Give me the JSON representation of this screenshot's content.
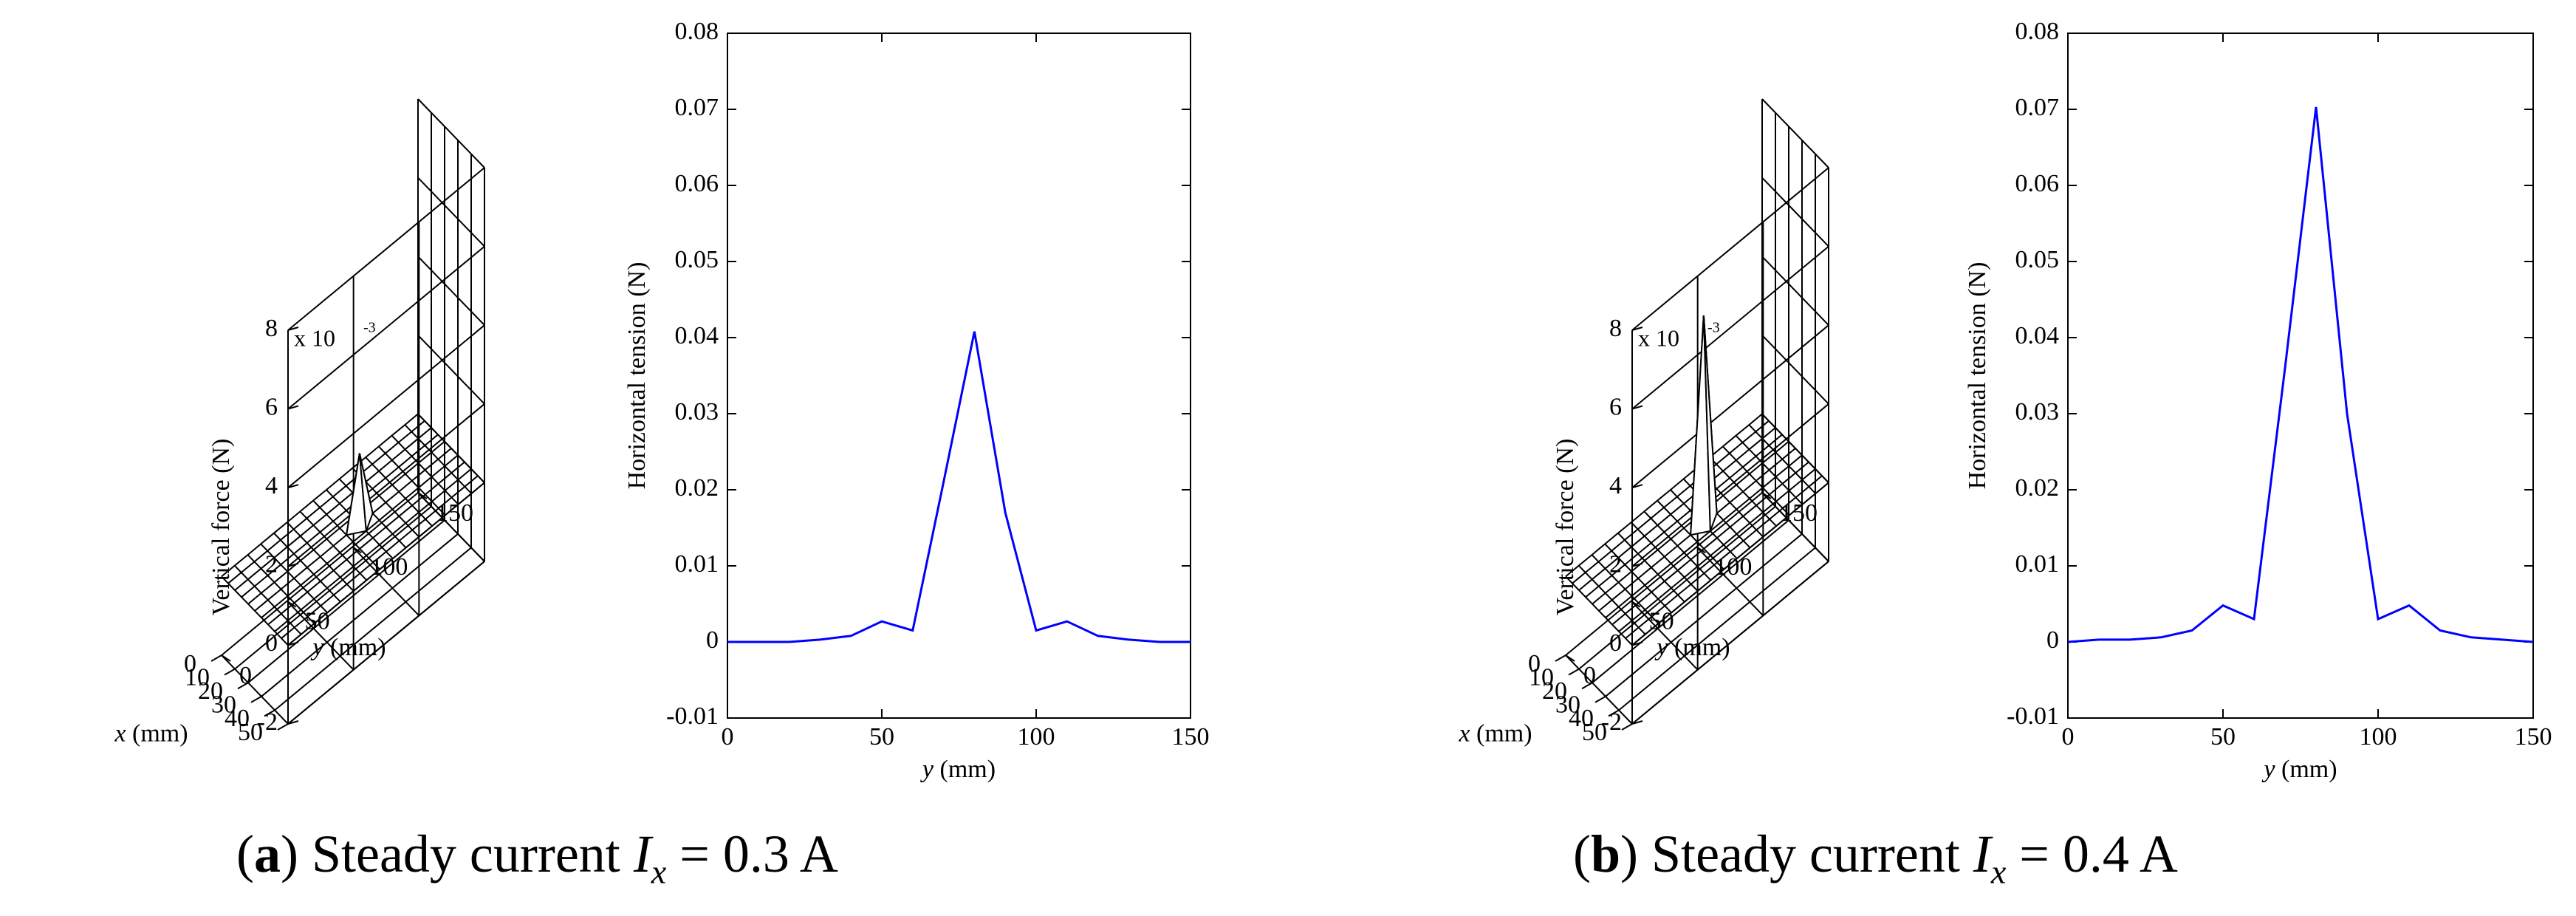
{
  "chart_data": [
    {
      "id": "a-3d",
      "type": "surface3d",
      "zlabel": "Vertical force (N)",
      "xlabel_var": "x",
      "xlabel_unit": " (mm)",
      "ylabel_var": "y",
      "ylabel_unit": " (mm)",
      "exponent_prefix": "x 10",
      "exponent_power": "-3",
      "x_ticks": [
        "0",
        "10",
        "20",
        "30",
        "40",
        "50"
      ],
      "y_ticks": [
        "0",
        "50",
        "100",
        "150"
      ],
      "z_ticks": [
        "-2",
        "0",
        "2",
        "4",
        "6",
        "8"
      ],
      "xlim": [
        0,
        50
      ],
      "ylim": [
        0,
        150
      ],
      "zlim": [
        -2,
        8
      ],
      "peak": {
        "x": 25,
        "y": 80,
        "z": 1.8
      }
    },
    {
      "id": "a-line",
      "type": "line",
      "ylabel": "Horizontal tension (N)",
      "xlabel_var": "y",
      "xlabel_unit": " (mm)",
      "xlim": [
        0,
        150
      ],
      "ylim": [
        -0.01,
        0.08
      ],
      "x_ticks": [
        "0",
        "50",
        "100",
        "150"
      ],
      "y_ticks": [
        "-0.01",
        "0",
        "0.01",
        "0.02",
        "0.03",
        "0.04",
        "0.05",
        "0.06",
        "0.07",
        "0.08"
      ],
      "series": [
        {
          "name": "Ix = 0.3 A",
          "color": "#0000ff",
          "x": [
            0,
            10,
            20,
            30,
            40,
            50,
            60,
            70,
            80,
            90,
            100,
            110,
            120,
            130,
            140,
            150
          ],
          "y": [
            0.0,
            0.0,
            0.0,
            0.0003,
            0.0008,
            0.0027,
            0.0015,
            0.021,
            0.0408,
            0.017,
            0.0015,
            0.0027,
            0.0008,
            0.0003,
            0.0,
            0.0
          ]
        }
      ]
    },
    {
      "id": "b-3d",
      "type": "surface3d",
      "zlabel": "Vertical force (N)",
      "xlabel_var": "x",
      "xlabel_unit": " (mm)",
      "ylabel_var": "y",
      "ylabel_unit": " (mm)",
      "exponent_prefix": "x 10",
      "exponent_power": "-3",
      "x_ticks": [
        "0",
        "10",
        "20",
        "30",
        "40",
        "50"
      ],
      "y_ticks": [
        "0",
        "50",
        "100",
        "150"
      ],
      "z_ticks": [
        "-2",
        "0",
        "2",
        "4",
        "6",
        "8"
      ],
      "xlim": [
        0,
        50
      ],
      "ylim": [
        0,
        150
      ],
      "zlim": [
        -2,
        8
      ],
      "peak": {
        "x": 25,
        "y": 80,
        "z": 5.3
      }
    },
    {
      "id": "b-line",
      "type": "line",
      "ylabel": "Horizontal tension (N)",
      "xlabel_var": "y",
      "xlabel_unit": " (mm)",
      "xlim": [
        0,
        150
      ],
      "ylim": [
        -0.01,
        0.08
      ],
      "x_ticks": [
        "0",
        "50",
        "100",
        "150"
      ],
      "y_ticks": [
        "-0.01",
        "0",
        "0.01",
        "0.02",
        "0.03",
        "0.04",
        "0.05",
        "0.06",
        "0.07",
        "0.08"
      ],
      "series": [
        {
          "name": "Ix = 0.4 A",
          "color": "#0000ff",
          "x": [
            0,
            10,
            20,
            30,
            40,
            50,
            60,
            70,
            80,
            90,
            100,
            110,
            120,
            130,
            140,
            150
          ],
          "y": [
            0.0,
            0.0003,
            0.0003,
            0.0006,
            0.0015,
            0.0048,
            0.003,
            0.036,
            0.0703,
            0.03,
            0.003,
            0.0048,
            0.0015,
            0.0006,
            0.0003,
            0.0
          ]
        }
      ]
    }
  ],
  "captions": {
    "a": {
      "label": "a",
      "text_before": " Steady current ",
      "var": "I",
      "sub": "x",
      "text_after": " = 0.3 A"
    },
    "b": {
      "label": "b",
      "text_before": " Steady current ",
      "var": "I",
      "sub": "x",
      "text_after": " = 0.4 A"
    }
  }
}
